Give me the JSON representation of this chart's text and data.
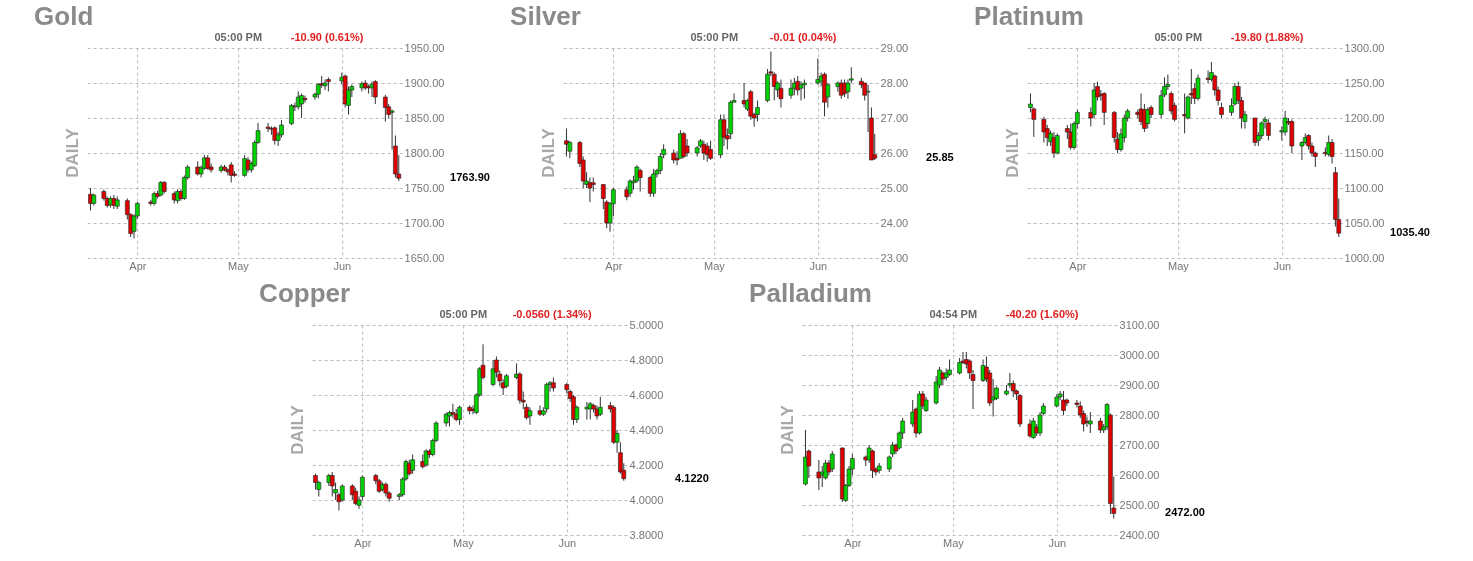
{
  "chart_data": [
    {
      "type": "candlestick",
      "title": "Gold",
      "ylabel": "DAILY",
      "grid": true,
      "annotations": [
        "05:00 PM",
        "-10.90 (0.61%)",
        "1763.90"
      ],
      "xlim": [
        "--03-17",
        "--06-19"
      ],
      "xticks": [
        {
          "value": "--04-01",
          "label": "Apr"
        },
        {
          "value": "--05-01",
          "label": "May"
        },
        {
          "value": "--06-01",
          "label": "Jun"
        }
      ],
      "ylim": [
        1650,
        1950
      ],
      "yticks": [
        {
          "value": 1650,
          "label": "1650.00"
        },
        {
          "value": 1700,
          "label": "1700.00"
        },
        {
          "value": 1750,
          "label": "1750.00"
        },
        {
          "value": 1800,
          "label": "1800.00"
        },
        {
          "value": 1850,
          "label": "1850.00"
        },
        {
          "value": 1900,
          "label": "1900.00"
        },
        {
          "value": 1950,
          "label": "1950.00"
        }
      ],
      "x": [
        "--03-18",
        "--03-19",
        "--03-22",
        "--03-23",
        "--03-24",
        "--03-25",
        "--03-26",
        "--03-29",
        "--03-30",
        "--03-31",
        "--04-01",
        "--04-05",
        "--04-06",
        "--04-07",
        "--04-08",
        "--04-09",
        "--04-12",
        "--04-13",
        "--04-14",
        "--04-15",
        "--04-16",
        "--04-19",
        "--04-20",
        "--04-21",
        "--04-22",
        "--04-23",
        "--04-26",
        "--04-27",
        "--04-28",
        "--04-29",
        "--04-30",
        "--05-03",
        "--05-04",
        "--05-05",
        "--05-06",
        "--05-07",
        "--05-10",
        "--05-11",
        "--05-12",
        "--05-13",
        "--05-14",
        "--05-17",
        "--05-18",
        "--05-19",
        "--05-20",
        "--05-21",
        "--05-24",
        "--05-25",
        "--05-26",
        "--05-27",
        "--05-28",
        "--06-01",
        "--06-02",
        "--06-03",
        "--06-04",
        "--06-07",
        "--06-08",
        "--06-09",
        "--06-10",
        "--06-11",
        "--06-14",
        "--06-15",
        "--06-16",
        "--06-17",
        "--06-18"
      ],
      "ohlc": [
        [
          1741,
          1750,
          1718,
          1728
        ],
        [
          1728,
          1742,
          1725,
          1740
        ],
        [
          1745,
          1748,
          1732,
          1735
        ],
        [
          1735,
          1738,
          1722,
          1725
        ],
        [
          1726,
          1738,
          1722,
          1735
        ],
        [
          1735,
          1740,
          1720,
          1725
        ],
        [
          1724,
          1738,
          1720,
          1733
        ],
        [
          1732,
          1735,
          1705,
          1712
        ],
        [
          1712,
          1714,
          1680,
          1685
        ],
        [
          1688,
          1712,
          1678,
          1710
        ],
        [
          1710,
          1730,
          1706,
          1728
        ],
        [
          1730,
          1733,
          1725,
          1728
        ],
        [
          1728,
          1745,
          1725,
          1742
        ],
        [
          1742,
          1746,
          1735,
          1738
        ],
        [
          1740,
          1760,
          1738,
          1758
        ],
        [
          1758,
          1760,
          1742,
          1745
        ],
        [
          1742,
          1745,
          1728,
          1733
        ],
        [
          1732,
          1748,
          1728,
          1745
        ],
        [
          1745,
          1748,
          1732,
          1735
        ],
        [
          1735,
          1768,
          1733,
          1765
        ],
        [
          1765,
          1783,
          1762,
          1780
        ],
        [
          1780,
          1788,
          1768,
          1770
        ],
        [
          1770,
          1782,
          1765,
          1779
        ],
        [
          1778,
          1797,
          1776,
          1793
        ],
        [
          1793,
          1797,
          1776,
          1778
        ],
        [
          1780,
          1785,
          1772,
          1776
        ],
        [
          1775,
          1783,
          1772,
          1780
        ],
        [
          1780,
          1783,
          1774,
          1776
        ],
        [
          1776,
          1778,
          1768,
          1773
        ],
        [
          1783,
          1787,
          1758,
          1768
        ],
        [
          1770,
          1774,
          1766,
          1768
        ],
        [
          1768,
          1797,
          1766,
          1792
        ],
        [
          1790,
          1794,
          1772,
          1776
        ],
        [
          1776,
          1788,
          1772,
          1785
        ],
        [
          1782,
          1818,
          1780,
          1815
        ],
        [
          1815,
          1843,
          1813,
          1832
        ],
        [
          1837,
          1843,
          1830,
          1835
        ],
        [
          1835,
          1838,
          1826,
          1834
        ],
        [
          1836,
          1838,
          1812,
          1818
        ],
        [
          1818,
          1830,
          1810,
          1826
        ],
        [
          1826,
          1847,
          1822,
          1840
        ],
        [
          1842,
          1870,
          1840,
          1868
        ],
        [
          1867,
          1872,
          1860,
          1866
        ],
        [
          1866,
          1888,
          1862,
          1880
        ],
        [
          1870,
          1885,
          1850,
          1882
        ],
        [
          1878,
          1882,
          1872,
          1876
        ],
        [
          1880,
          1886,
          1876,
          1884
        ],
        [
          1884,
          1900,
          1878,
          1898
        ],
        [
          1899,
          1910,
          1893,
          1897
        ],
        [
          1896,
          1905,
          1890,
          1900
        ],
        [
          1905,
          1908,
          1888,
          1902
        ],
        [
          1903,
          1915,
          1898,
          1908
        ],
        [
          1910,
          1912,
          1865,
          1870
        ],
        [
          1868,
          1895,
          1855,
          1890
        ],
        [
          1890,
          1898,
          1880,
          1895
        ],
        [
          1893,
          1902,
          1888,
          1899
        ],
        [
          1900,
          1904,
          1890,
          1893
        ],
        [
          1895,
          1898,
          1885,
          1893
        ],
        [
          1893,
          1902,
          1880,
          1898
        ],
        [
          1902,
          1904,
          1870,
          1880
        ],
        [
          1880,
          1883,
          1845,
          1865
        ],
        [
          1866,
          1870,
          1850,
          1855
        ],
        [
          1858,
          1862,
          1805,
          1860
        ],
        [
          1810,
          1825,
          1765,
          1770
        ],
        [
          1770,
          1797,
          1760,
          1763.9
        ]
      ]
    },
    {
      "type": "candlestick",
      "title": "Silver",
      "ylabel": "DAILY",
      "grid": true,
      "annotations": [
        "05:00 PM",
        "-0.01 (0.04%)",
        "25.85"
      ],
      "xlim": [
        "--03-17",
        "--06-19"
      ],
      "xticks": [
        {
          "value": "--04-01",
          "label": "Apr"
        },
        {
          "value": "--05-01",
          "label": "May"
        },
        {
          "value": "--06-01",
          "label": "Jun"
        }
      ],
      "ylim": [
        23,
        29
      ],
      "yticks": [
        {
          "value": 23,
          "label": "23.00"
        },
        {
          "value": 24,
          "label": "24.00"
        },
        {
          "value": 25,
          "label": "25.00"
        },
        {
          "value": 26,
          "label": "26.00"
        },
        {
          "value": 27,
          "label": "27.00"
        },
        {
          "value": 28,
          "label": "28.00"
        },
        {
          "value": 29,
          "label": "29.00"
        }
      ],
      "x": [
        "--03-18",
        "--03-19",
        "--03-22",
        "--03-23",
        "--03-24",
        "--03-25",
        "--03-26",
        "--03-29",
        "--03-30",
        "--03-31",
        "--04-01",
        "--04-05",
        "--04-06",
        "--04-07",
        "--04-08",
        "--04-09",
        "--04-12",
        "--04-13",
        "--04-14",
        "--04-15",
        "--04-16",
        "--04-19",
        "--04-20",
        "--04-21",
        "--04-22",
        "--04-23",
        "--04-26",
        "--04-27",
        "--04-28",
        "--04-29",
        "--04-30",
        "--05-03",
        "--05-04",
        "--05-05",
        "--05-06",
        "--05-07",
        "--05-10",
        "--05-11",
        "--05-12",
        "--05-13",
        "--05-14",
        "--05-17",
        "--05-18",
        "--05-19",
        "--05-20",
        "--05-21",
        "--05-24",
        "--05-25",
        "--05-26",
        "--05-27",
        "--05-28",
        "--06-01",
        "--06-02",
        "--06-03",
        "--06-04",
        "--06-07",
        "--06-08",
        "--06-09",
        "--06-10",
        "--06-11",
        "--06-14",
        "--06-15",
        "--06-16",
        "--06-17",
        "--06-18"
      ],
      "ohlc": [
        [
          26.35,
          26.7,
          25.9,
          26.25
        ],
        [
          26.05,
          26.35,
          25.85,
          26.3
        ],
        [
          26.3,
          26.35,
          25.6,
          25.7
        ],
        [
          25.8,
          25.9,
          25.0,
          25.2
        ],
        [
          25.1,
          25.45,
          25.0,
          25.2
        ],
        [
          25.15,
          25.3,
          24.6,
          25.0
        ],
        [
          25.15,
          25.3,
          24.9,
          25.1
        ],
        [
          25.1,
          25.1,
          24.4,
          24.7
        ],
        [
          24.6,
          24.65,
          23.85,
          24.0
        ],
        [
          24.0,
          24.6,
          23.75,
          24.55
        ],
        [
          24.55,
          25.0,
          24.2,
          24.95
        ],
        [
          24.95,
          25.05,
          24.65,
          24.75
        ],
        [
          24.85,
          25.25,
          24.75,
          25.2
        ],
        [
          25.15,
          25.35,
          24.95,
          25.2
        ],
        [
          25.2,
          25.65,
          25.15,
          25.6
        ],
        [
          25.5,
          25.55,
          24.9,
          25.3
        ],
        [
          25.3,
          25.35,
          24.75,
          24.85
        ],
        [
          24.85,
          25.55,
          24.75,
          25.4
        ],
        [
          25.4,
          25.55,
          25.3,
          25.5
        ],
        [
          25.5,
          26.0,
          25.4,
          25.9
        ],
        [
          25.95,
          26.25,
          25.85,
          26.1
        ],
        [
          26.0,
          26.1,
          25.7,
          25.8
        ],
        [
          25.85,
          26.05,
          25.65,
          25.8
        ],
        [
          25.85,
          26.65,
          25.85,
          26.55
        ],
        [
          26.55,
          26.6,
          25.85,
          25.9
        ],
        [
          26.2,
          26.4,
          25.9,
          26.0
        ],
        [
          26.0,
          26.2,
          25.9,
          26.15
        ],
        [
          26.2,
          26.4,
          26.15,
          26.35
        ],
        [
          26.25,
          26.35,
          25.8,
          26.0
        ],
        [
          26.2,
          26.3,
          25.75,
          25.95
        ],
        [
          26.1,
          26.35,
          25.8,
          25.85
        ],
        [
          25.95,
          27.1,
          25.85,
          26.95
        ],
        [
          26.95,
          27.1,
          26.2,
          26.45
        ],
        [
          26.5,
          26.7,
          26.1,
          26.4
        ],
        [
          26.55,
          27.5,
          26.4,
          27.45
        ],
        [
          27.45,
          27.7,
          27.45,
          27.5
        ],
        [
          27.5,
          28.0,
          27.3,
          27.4
        ],
        [
          27.25,
          27.55,
          27.2,
          27.5
        ],
        [
          27.75,
          27.8,
          26.95,
          27.05
        ],
        [
          27.1,
          27.15,
          26.75,
          27.0
        ],
        [
          27.1,
          27.5,
          26.9,
          27.3
        ],
        [
          27.5,
          28.4,
          27.45,
          28.25
        ],
        [
          28.32,
          28.9,
          28.2,
          28.28
        ],
        [
          28.25,
          28.3,
          27.5,
          27.9
        ],
        [
          27.8,
          28.05,
          27.6,
          28.0
        ],
        [
          27.85,
          28.1,
          27.3,
          27.55
        ],
        [
          27.65,
          28.1,
          27.55,
          27.85
        ],
        [
          27.85,
          28.15,
          27.65,
          28.0
        ],
        [
          28.05,
          28.2,
          27.65,
          27.8
        ],
        [
          27.85,
          28.05,
          27.5,
          27.95
        ],
        [
          27.95,
          28.1,
          27.55,
          28.0
        ],
        [
          28.0,
          28.7,
          27.95,
          28.1
        ],
        [
          28.05,
          28.3,
          27.9,
          28.2
        ],
        [
          28.25,
          28.3,
          27.05,
          27.45
        ],
        [
          27.6,
          28.0,
          27.3,
          27.95
        ],
        [
          27.9,
          28.05,
          27.75,
          28.0
        ],
        [
          28.0,
          28.1,
          27.55,
          27.65
        ],
        [
          28.0,
          28.1,
          27.6,
          27.7
        ],
        [
          27.75,
          28.1,
          27.55,
          28.0
        ],
        [
          28.08,
          28.45,
          28.0,
          28.12
        ],
        [
          28.05,
          28.15,
          27.85,
          27.95
        ],
        [
          28.0,
          28.0,
          27.5,
          27.65
        ],
        [
          27.74,
          27.95,
          26.6,
          27.76
        ],
        [
          27.0,
          27.3,
          25.8,
          25.8
        ],
        [
          25.95,
          26.55,
          25.8,
          25.85
        ]
      ]
    },
    {
      "type": "candlestick",
      "title": "Platinum",
      "ylabel": "DAILY",
      "grid": true,
      "annotations": [
        "05:00 PM",
        "-19.80 (1.88%)",
        "1035.40"
      ],
      "xlim": [
        "--03-17",
        "--06-19"
      ],
      "xticks": [
        {
          "value": "--04-01",
          "label": "Apr"
        },
        {
          "value": "--05-01",
          "label": "May"
        },
        {
          "value": "--06-01",
          "label": "Jun"
        }
      ],
      "ylim": [
        1000,
        1300
      ],
      "yticks": [
        {
          "value": 1000,
          "label": "1000.00"
        },
        {
          "value": 1050,
          "label": "1050.00"
        },
        {
          "value": 1100,
          "label": "1100.00"
        },
        {
          "value": 1150,
          "label": "1150.00"
        },
        {
          "value": 1200,
          "label": "1200.00"
        },
        {
          "value": 1250,
          "label": "1250.00"
        },
        {
          "value": 1300,
          "label": "1300.00"
        }
      ],
      "x": [
        "--03-18",
        "--03-19",
        "--03-22",
        "--03-23",
        "--03-24",
        "--03-25",
        "--03-26",
        "--03-29",
        "--03-30",
        "--03-31",
        "--04-01",
        "--04-05",
        "--04-06",
        "--04-07",
        "--04-08",
        "--04-09",
        "--04-12",
        "--04-13",
        "--04-14",
        "--04-15",
        "--04-16",
        "--04-19",
        "--04-20",
        "--04-21",
        "--04-22",
        "--04-23",
        "--04-26",
        "--04-27",
        "--04-28",
        "--04-29",
        "--04-30",
        "--05-03",
        "--05-04",
        "--05-05",
        "--05-06",
        "--05-07",
        "--05-10",
        "--05-11",
        "--05-12",
        "--05-13",
        "--05-14",
        "--05-17",
        "--05-18",
        "--05-19",
        "--05-20",
        "--05-21",
        "--05-24",
        "--05-25",
        "--05-26",
        "--05-27",
        "--05-28",
        "--06-01",
        "--06-02",
        "--06-03",
        "--06-04",
        "--06-07",
        "--06-08",
        "--06-09",
        "--06-10",
        "--06-11",
        "--06-14",
        "--06-15",
        "--06-16",
        "--06-17",
        "--06-18"
      ],
      "ohlc": [
        [
          1215,
          1235,
          1208,
          1220
        ],
        [
          1213,
          1215,
          1173,
          1198
        ],
        [
          1198,
          1202,
          1165,
          1180
        ],
        [
          1185,
          1190,
          1160,
          1172
        ],
        [
          1166,
          1182,
          1160,
          1178
        ],
        [
          1172,
          1180,
          1143,
          1150
        ],
        [
          1150,
          1178,
          1148,
          1175
        ],
        [
          1185,
          1190,
          1170,
          1180
        ],
        [
          1180,
          1192,
          1155,
          1158
        ],
        [
          1158,
          1195,
          1155,
          1192
        ],
        [
          1192,
          1212,
          1185,
          1208
        ],
        [
          1208,
          1215,
          1188,
          1200
        ],
        [
          1205,
          1250,
          1200,
          1240
        ],
        [
          1245,
          1252,
          1225,
          1230
        ],
        [
          1234,
          1240,
          1225,
          1232
        ],
        [
          1235,
          1237,
          1190,
          1208
        ],
        [
          1208,
          1210,
          1165,
          1172
        ],
        [
          1170,
          1180,
          1150,
          1155
        ],
        [
          1155,
          1185,
          1152,
          1177
        ],
        [
          1172,
          1205,
          1165,
          1200
        ],
        [
          1200,
          1213,
          1195,
          1210
        ],
        [
          1208,
          1212,
          1200,
          1205
        ],
        [
          1213,
          1235,
          1190,
          1195
        ],
        [
          1212,
          1220,
          1180,
          1185
        ],
        [
          1192,
          1215,
          1185,
          1212
        ],
        [
          1215,
          1218,
          1200,
          1205
        ],
        [
          1205,
          1240,
          1200,
          1232
        ],
        [
          1233,
          1258,
          1230,
          1245
        ],
        [
          1245,
          1262,
          1240,
          1248
        ],
        [
          1235,
          1238,
          1205,
          1210
        ],
        [
          1218,
          1222,
          1195,
          1198
        ],
        [
          1205,
          1235,
          1178,
          1203
        ],
        [
          1200,
          1232,
          1198,
          1230
        ],
        [
          1235,
          1270,
          1220,
          1233
        ],
        [
          1242,
          1250,
          1220,
          1228
        ],
        [
          1228,
          1262,
          1225,
          1257
        ],
        [
          1257,
          1268,
          1250,
          1255
        ],
        [
          1255,
          1280,
          1252,
          1265
        ],
        [
          1260,
          1262,
          1232,
          1240
        ],
        [
          1240,
          1245,
          1218,
          1225
        ],
        [
          1215,
          1222,
          1200,
          1205
        ],
        [
          1208,
          1228,
          1203,
          1218
        ],
        [
          1220,
          1250,
          1218,
          1245
        ],
        [
          1245,
          1252,
          1220,
          1225
        ],
        [
          1225,
          1230,
          1185,
          1200
        ],
        [
          1195,
          1210,
          1185,
          1205
        ],
        [
          1200,
          1200,
          1160,
          1165
        ],
        [
          1168,
          1180,
          1160,
          1175
        ],
        [
          1175,
          1195,
          1170,
          1193
        ],
        [
          1195,
          1202,
          1185,
          1198
        ],
        [
          1193,
          1198,
          1168,
          1175
        ],
        [
          1180,
          1188,
          1168,
          1182
        ],
        [
          1180,
          1210,
          1175,
          1200
        ],
        [
          1195,
          1200,
          1190,
          1193
        ],
        [
          1195,
          1198,
          1150,
          1160
        ],
        [
          1160,
          1167,
          1140,
          1165
        ],
        [
          1165,
          1178,
          1162,
          1172
        ],
        [
          1175,
          1177,
          1155,
          1160
        ],
        [
          1160,
          1165,
          1145,
          1150
        ],
        [
          1150,
          1152,
          1130,
          1145
        ],
        [
          1151,
          1158,
          1145,
          1149
        ],
        [
          1148,
          1175,
          1145,
          1165
        ],
        [
          1165,
          1170,
          1135,
          1145
        ],
        [
          1122,
          1130,
          1045,
          1055
        ],
        [
          1055,
          1085,
          1030,
          1035.4
        ]
      ]
    },
    {
      "type": "candlestick",
      "title": "Copper",
      "ylabel": "DAILY",
      "grid": true,
      "annotations": [
        "05:00 PM",
        "-0.0560 (1.34%)",
        "4.1220"
      ],
      "xlim": [
        "--03-17",
        "--06-19"
      ],
      "xticks": [
        {
          "value": "--04-01",
          "label": "Apr"
        },
        {
          "value": "--05-01",
          "label": "May"
        },
        {
          "value": "--06-01",
          "label": "Jun"
        }
      ],
      "ylim": [
        3.8,
        5.0
      ],
      "yticks": [
        {
          "value": 3.8,
          "label": "3.8000"
        },
        {
          "value": 4.0,
          "label": "4.0000"
        },
        {
          "value": 4.2,
          "label": "4.2000"
        },
        {
          "value": 4.4,
          "label": "4.4000"
        },
        {
          "value": 4.6,
          "label": "4.6000"
        },
        {
          "value": 4.8,
          "label": "4.8000"
        },
        {
          "value": 5.0,
          "label": "5.0000"
        }
      ],
      "x": [
        "--03-18",
        "--03-19",
        "--03-22",
        "--03-23",
        "--03-24",
        "--03-25",
        "--03-26",
        "--03-29",
        "--03-30",
        "--03-31",
        "--04-01",
        "--04-05",
        "--04-06",
        "--04-07",
        "--04-08",
        "--04-09",
        "--04-12",
        "--04-13",
        "--04-14",
        "--04-15",
        "--04-16",
        "--04-19",
        "--04-20",
        "--04-21",
        "--04-22",
        "--04-23",
        "--04-26",
        "--04-27",
        "--04-28",
        "--04-29",
        "--04-30",
        "--05-03",
        "--05-04",
        "--05-05",
        "--05-06",
        "--05-07",
        "--05-10",
        "--05-11",
        "--05-12",
        "--05-13",
        "--05-14",
        "--05-17",
        "--05-18",
        "--05-19",
        "--05-20",
        "--05-21",
        "--05-24",
        "--05-25",
        "--05-26",
        "--05-27",
        "--05-28",
        "--06-01",
        "--06-02",
        "--06-03",
        "--06-04",
        "--06-07",
        "--06-08",
        "--06-09",
        "--06-10",
        "--06-11",
        "--06-14",
        "--06-15",
        "--06-16",
        "--06-17",
        "--06-18"
      ],
      "ohlc": [
        [
          4.14,
          4.15,
          4.06,
          4.1
        ],
        [
          4.06,
          4.11,
          4.02,
          4.1
        ],
        [
          4.1,
          4.15,
          4.08,
          4.14
        ],
        [
          4.14,
          4.16,
          4.02,
          4.08
        ],
        [
          4.04,
          4.1,
          4.0,
          4.06
        ],
        [
          4.03,
          4.04,
          3.94,
          3.99
        ],
        [
          4.0,
          4.09,
          3.99,
          4.08
        ],
        [
          4.08,
          4.09,
          4.0,
          4.03
        ],
        [
          4.05,
          4.07,
          3.97,
          3.98
        ],
        [
          3.97,
          4.02,
          3.95,
          4.0
        ],
        [
          4.02,
          4.14,
          4.0,
          4.13
        ],
        [
          4.14,
          4.15,
          4.09,
          4.11
        ],
        [
          4.11,
          4.12,
          4.04,
          4.05
        ],
        [
          4.06,
          4.1,
          4.05,
          4.09
        ],
        [
          4.09,
          4.1,
          4.02,
          4.04
        ],
        [
          4.04,
          4.05,
          3.99,
          4.01
        ],
        [
          4.02,
          4.04,
          4.0,
          4.03
        ],
        [
          4.03,
          4.13,
          4.02,
          4.12
        ],
        [
          4.12,
          4.23,
          4.11,
          4.22
        ],
        [
          4.21,
          4.23,
          4.14,
          4.15
        ],
        [
          4.17,
          4.26,
          4.15,
          4.23
        ],
        [
          4.22,
          4.26,
          4.18,
          4.19
        ],
        [
          4.2,
          4.29,
          4.19,
          4.28
        ],
        [
          4.28,
          4.29,
          4.24,
          4.26
        ],
        [
          4.26,
          4.35,
          4.25,
          4.34
        ],
        [
          4.34,
          4.45,
          4.33,
          4.44
        ],
        [
          4.44,
          4.5,
          4.42,
          4.49
        ],
        [
          4.48,
          4.51,
          4.42,
          4.5
        ],
        [
          4.5,
          4.55,
          4.47,
          4.49
        ],
        [
          4.49,
          4.52,
          4.45,
          4.46
        ],
        [
          4.46,
          4.54,
          4.43,
          4.53
        ],
        [
          4.53,
          4.54,
          4.49,
          4.51
        ],
        [
          4.52,
          4.54,
          4.49,
          4.51
        ],
        [
          4.5,
          4.61,
          4.49,
          4.6
        ],
        [
          4.6,
          4.76,
          4.59,
          4.75
        ],
        [
          4.77,
          4.89,
          4.69,
          4.7
        ],
        [
          4.66,
          4.8,
          4.65,
          4.75
        ],
        [
          4.8,
          4.82,
          4.7,
          4.73
        ],
        [
          4.72,
          4.74,
          4.65,
          4.68
        ],
        [
          4.67,
          4.69,
          4.6,
          4.64
        ],
        [
          4.65,
          4.72,
          4.64,
          4.71
        ],
        [
          4.7,
          4.78,
          4.69,
          4.72
        ],
        [
          4.72,
          4.73,
          4.55,
          4.57
        ],
        [
          4.57,
          4.62,
          4.52,
          4.56
        ],
        [
          4.53,
          4.55,
          4.46,
          4.47
        ],
        [
          4.48,
          4.53,
          4.43,
          4.51
        ],
        [
          4.51,
          4.54,
          4.48,
          4.49
        ],
        [
          4.49,
          4.53,
          4.48,
          4.51
        ],
        [
          4.52,
          4.67,
          4.5,
          4.66
        ],
        [
          4.66,
          4.68,
          4.62,
          4.67
        ],
        [
          4.67,
          4.7,
          4.62,
          4.64
        ],
        [
          4.66,
          4.67,
          4.61,
          4.63
        ],
        [
          4.62,
          4.63,
          4.56,
          4.58
        ],
        [
          4.59,
          4.6,
          4.43,
          4.46
        ],
        [
          4.46,
          4.54,
          4.44,
          4.53
        ],
        [
          4.52,
          4.56,
          4.46,
          4.53
        ],
        [
          4.52,
          4.56,
          4.46,
          4.55
        ],
        [
          4.54,
          4.55,
          4.5,
          4.52
        ],
        [
          4.52,
          4.54,
          4.46,
          4.48
        ],
        [
          4.49,
          4.59,
          4.48,
          4.53
        ],
        [
          4.54,
          4.56,
          4.5,
          4.52
        ],
        [
          4.53,
          4.54,
          4.32,
          4.33
        ],
        [
          4.33,
          4.4,
          4.27,
          4.38
        ],
        [
          4.27,
          4.33,
          4.15,
          4.16
        ],
        [
          4.17,
          4.21,
          4.11,
          4.122
        ]
      ]
    },
    {
      "type": "candlestick",
      "title": "Palladium",
      "ylabel": "DAILY",
      "grid": true,
      "annotations": [
        "04:54 PM",
        "-40.20 (1.60%)",
        "2472.00"
      ],
      "xlim": [
        "--03-17",
        "--06-19"
      ],
      "xticks": [
        {
          "value": "--04-01",
          "label": "Apr"
        },
        {
          "value": "--05-01",
          "label": "May"
        },
        {
          "value": "--06-01",
          "label": "Jun"
        }
      ],
      "ylim": [
        2400,
        3100
      ],
      "yticks": [
        {
          "value": 2400,
          "label": "2400.00"
        },
        {
          "value": 2500,
          "label": "2500.00"
        },
        {
          "value": 2600,
          "label": "2600.00"
        },
        {
          "value": 2700,
          "label": "2700.00"
        },
        {
          "value": 2800,
          "label": "2800.00"
        },
        {
          "value": 2900,
          "label": "2900.00"
        },
        {
          "value": 3000,
          "label": "3000.00"
        },
        {
          "value": 3100,
          "label": "3100.00"
        }
      ],
      "x": [
        "--03-18",
        "--03-19",
        "--03-22",
        "--03-23",
        "--03-24",
        "--03-25",
        "--03-26",
        "--03-29",
        "--03-30",
        "--03-31",
        "--04-01",
        "--04-05",
        "--04-06",
        "--04-07",
        "--04-08",
        "--04-09",
        "--04-12",
        "--04-13",
        "--04-14",
        "--04-15",
        "--04-16",
        "--04-19",
        "--04-20",
        "--04-21",
        "--04-22",
        "--04-23",
        "--04-26",
        "--04-27",
        "--04-28",
        "--04-29",
        "--04-30",
        "--05-03",
        "--05-04",
        "--05-05",
        "--05-06",
        "--05-07",
        "--05-10",
        "--05-11",
        "--05-12",
        "--05-13",
        "--05-14",
        "--05-17",
        "--05-18",
        "--05-19",
        "--05-20",
        "--05-21",
        "--05-24",
        "--05-25",
        "--05-26",
        "--05-27",
        "--05-28",
        "--06-01",
        "--06-02",
        "--06-03",
        "--06-04",
        "--06-07",
        "--06-08",
        "--06-09",
        "--06-10",
        "--06-11",
        "--06-14",
        "--06-15",
        "--06-16",
        "--06-17",
        "--06-18"
      ],
      "ohlc": [
        [
          2570,
          2750,
          2565,
          2660
        ],
        [
          2680,
          2685,
          2590,
          2630
        ],
        [
          2610,
          2650,
          2550,
          2590
        ],
        [
          2600,
          2630,
          2560,
          2610
        ],
        [
          2590,
          2650,
          2585,
          2640
        ],
        [
          2640,
          2650,
          2600,
          2610
        ],
        [
          2620,
          2680,
          2610,
          2670
        ],
        [
          2690,
          2692,
          2510,
          2520
        ],
        [
          2515,
          2570,
          2510,
          2565
        ],
        [
          2565,
          2630,
          2560,
          2620
        ],
        [
          2620,
          2670,
          2600,
          2655
        ],
        [
          2660,
          2665,
          2630,
          2650
        ],
        [
          2650,
          2700,
          2640,
          2690
        ],
        [
          2680,
          2685,
          2590,
          2615
        ],
        [
          2620,
          2625,
          2600,
          2610
        ],
        [
          2615,
          2640,
          2605,
          2630
        ],
        [
          2620,
          2665,
          2610,
          2660
        ],
        [
          2670,
          2710,
          2660,
          2700
        ],
        [
          2700,
          2705,
          2670,
          2680
        ],
        [
          2690,
          2745,
          2685,
          2740
        ],
        [
          2740,
          2790,
          2720,
          2780
        ],
        [
          2770,
          2850,
          2760,
          2810
        ],
        [
          2820,
          2825,
          2725,
          2740
        ],
        [
          2740,
          2880,
          2735,
          2870
        ],
        [
          2870,
          2880,
          2820,
          2830
        ],
        [
          2815,
          2860,
          2810,
          2850
        ],
        [
          2840,
          2930,
          2835,
          2910
        ],
        [
          2900,
          2960,
          2890,
          2950
        ],
        [
          2940,
          2945,
          2900,
          2920
        ],
        [
          2925,
          2955,
          2915,
          2940
        ],
        [
          2935,
          2985,
          2930,
          2950
        ],
        [
          2940,
          2990,
          2935,
          2975
        ],
        [
          2980,
          3010,
          2970,
          2975
        ],
        [
          2985,
          3010,
          2955,
          2970
        ],
        [
          2980,
          2985,
          2920,
          2940
        ],
        [
          2935,
          2950,
          2820,
          2915
        ],
        [
          2915,
          2985,
          2910,
          2965
        ],
        [
          2960,
          2995,
          2910,
          2920
        ],
        [
          2940,
          2950,
          2830,
          2840
        ],
        [
          2850,
          2920,
          2795,
          2860
        ],
        [
          2855,
          2895,
          2850,
          2890
        ],
        [
          2870,
          2900,
          2865,
          2880
        ],
        [
          2900,
          2940,
          2890,
          2905
        ],
        [
          2905,
          2915,
          2860,
          2880
        ],
        [
          2880,
          2885,
          2850,
          2870
        ],
        [
          2865,
          2870,
          2760,
          2770
        ],
        [
          2770,
          2785,
          2725,
          2730
        ],
        [
          2725,
          2790,
          2720,
          2780
        ],
        [
          2760,
          2770,
          2730,
          2740
        ],
        [
          2740,
          2810,
          2730,
          2800
        ],
        [
          2805,
          2840,
          2800,
          2830
        ],
        [
          2830,
          2870,
          2825,
          2860
        ],
        [
          2860,
          2880,
          2850,
          2870
        ],
        [
          2850,
          2880,
          2800,
          2815
        ],
        [
          2850,
          2855,
          2830,
          2840
        ],
        [
          2840,
          2850,
          2825,
          2835
        ],
        [
          2830,
          2845,
          2790,
          2800
        ],
        [
          2805,
          2815,
          2745,
          2770
        ],
        [
          2780,
          2795,
          2760,
          2775
        ],
        [
          2770,
          2810,
          2740,
          2780
        ],
        [
          2780,
          2790,
          2740,
          2750
        ],
        [
          2750,
          2770,
          2740,
          2760
        ],
        [
          2760,
          2840,
          2750,
          2835
        ],
        [
          2800,
          2805,
          2470,
          2505
        ],
        [
          2490,
          2595,
          2455,
          2472
        ]
      ]
    }
  ]
}
